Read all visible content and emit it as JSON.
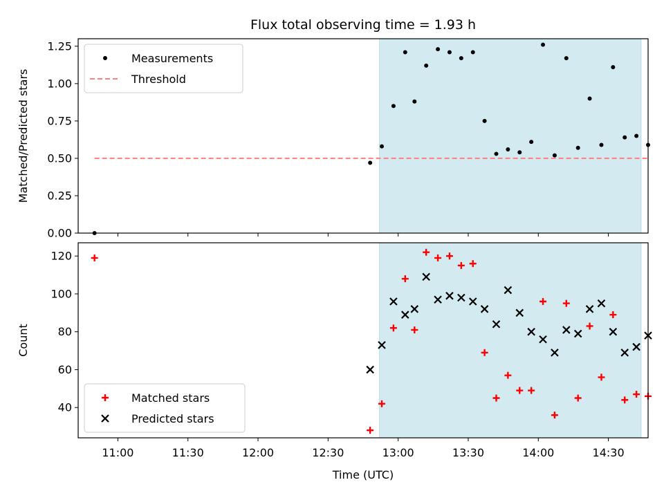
{
  "chart_data": [
    {
      "type": "scatter",
      "title": "Flux total observing time = 1.93 h",
      "ylabel": "Matched/Predicted stars",
      "xlabel": "",
      "x_unit": "time_utc",
      "xlim": [
        "10:43",
        "14:47"
      ],
      "ylim": [
        0,
        1.3
      ],
      "yticks": [
        0.0,
        0.25,
        0.5,
        0.75,
        1.0,
        1.25
      ],
      "ytick_labels": [
        "0.00",
        "0.25",
        "0.50",
        "0.75",
        "1.00",
        "1.25"
      ],
      "xticks": [
        "11:00",
        "11:30",
        "12:00",
        "12:30",
        "13:00",
        "13:30",
        "14:00",
        "14:30"
      ],
      "shaded_interval": {
        "start": "12:52",
        "end": "14:44",
        "color": "#d3eaf0"
      },
      "legend": {
        "placement": "top-left",
        "entries": [
          "Measurements",
          "Threshold"
        ]
      },
      "series": [
        {
          "name": "Measurements",
          "marker": "dot",
          "color": "#000000",
          "points": [
            [
              "10:50",
              0.0
            ],
            [
              "12:48",
              0.47
            ],
            [
              "12:53",
              0.58
            ],
            [
              "12:58",
              0.85
            ],
            [
              "13:03",
              1.21
            ],
            [
              "13:07",
              0.88
            ],
            [
              "13:12",
              1.12
            ],
            [
              "13:17",
              1.23
            ],
            [
              "13:22",
              1.21
            ],
            [
              "13:27",
              1.17
            ],
            [
              "13:32",
              1.21
            ],
            [
              "13:37",
              0.75
            ],
            [
              "13:42",
              0.53
            ],
            [
              "13:47",
              0.56
            ],
            [
              "13:52",
              0.54
            ],
            [
              "13:57",
              0.61
            ],
            [
              "14:02",
              1.26
            ],
            [
              "14:07",
              0.52
            ],
            [
              "14:12",
              1.17
            ],
            [
              "14:17",
              0.57
            ],
            [
              "14:22",
              0.9
            ],
            [
              "14:27",
              0.59
            ],
            [
              "14:32",
              1.11
            ],
            [
              "14:37",
              0.64
            ],
            [
              "14:42",
              0.65
            ],
            [
              "14:47",
              0.59
            ]
          ]
        },
        {
          "name": "Threshold",
          "style": "dashed-line",
          "color": "#ff7f7f",
          "points": [
            [
              "10:50",
              0.5
            ],
            [
              "14:47",
              0.5
            ]
          ]
        }
      ]
    },
    {
      "type": "scatter",
      "title": "",
      "ylabel": "Count",
      "xlabel": "Time (UTC)",
      "x_unit": "time_utc",
      "xlim": [
        "10:43",
        "14:47"
      ],
      "ylim": [
        24,
        127
      ],
      "yticks": [
        40,
        60,
        80,
        100,
        120
      ],
      "ytick_labels": [
        "40",
        "60",
        "80",
        "100",
        "120"
      ],
      "xticks": [
        "11:00",
        "11:30",
        "12:00",
        "12:30",
        "13:00",
        "13:30",
        "14:00",
        "14:30"
      ],
      "xtick_labels": [
        "11:00",
        "11:30",
        "12:00",
        "12:30",
        "13:00",
        "13:30",
        "14:00",
        "14:30"
      ],
      "shaded_interval": {
        "start": "12:52",
        "end": "14:44",
        "color": "#d3eaf0"
      },
      "legend": {
        "placement": "bottom-left",
        "entries": [
          "Matched stars",
          "Predicted stars"
        ]
      },
      "series": [
        {
          "name": "Matched stars",
          "marker": "plus",
          "color": "#ff0000",
          "points": [
            [
              "10:50",
              119
            ],
            [
              "12:48",
              28
            ],
            [
              "12:53",
              42
            ],
            [
              "12:58",
              82
            ],
            [
              "13:03",
              108
            ],
            [
              "13:07",
              81
            ],
            [
              "13:12",
              122
            ],
            [
              "13:17",
              119
            ],
            [
              "13:22",
              120
            ],
            [
              "13:27",
              115
            ],
            [
              "13:32",
              116
            ],
            [
              "13:37",
              69
            ],
            [
              "13:42",
              45
            ],
            [
              "13:47",
              57
            ],
            [
              "13:52",
              49
            ],
            [
              "13:57",
              49
            ],
            [
              "14:02",
              96
            ],
            [
              "14:07",
              36
            ],
            [
              "14:12",
              95
            ],
            [
              "14:17",
              45
            ],
            [
              "14:22",
              83
            ],
            [
              "14:27",
              56
            ],
            [
              "14:32",
              89
            ],
            [
              "14:37",
              44
            ],
            [
              "14:42",
              47
            ],
            [
              "14:47",
              46
            ]
          ]
        },
        {
          "name": "Predicted stars",
          "marker": "x",
          "color": "#000000",
          "points": [
            [
              "12:48",
              60
            ],
            [
              "12:53",
              73
            ],
            [
              "12:58",
              96
            ],
            [
              "13:03",
              89
            ],
            [
              "13:07",
              92
            ],
            [
              "13:12",
              109
            ],
            [
              "13:17",
              97
            ],
            [
              "13:22",
              99
            ],
            [
              "13:27",
              98
            ],
            [
              "13:32",
              96
            ],
            [
              "13:37",
              92
            ],
            [
              "13:42",
              84
            ],
            [
              "13:47",
              102
            ],
            [
              "13:52",
              90
            ],
            [
              "13:57",
              80
            ],
            [
              "14:02",
              76
            ],
            [
              "14:07",
              69
            ],
            [
              "14:12",
              81
            ],
            [
              "14:17",
              79
            ],
            [
              "14:22",
              92
            ],
            [
              "14:27",
              95
            ],
            [
              "14:32",
              80
            ],
            [
              "14:37",
              69
            ],
            [
              "14:42",
              72
            ],
            [
              "14:47",
              78
            ]
          ]
        }
      ]
    }
  ]
}
